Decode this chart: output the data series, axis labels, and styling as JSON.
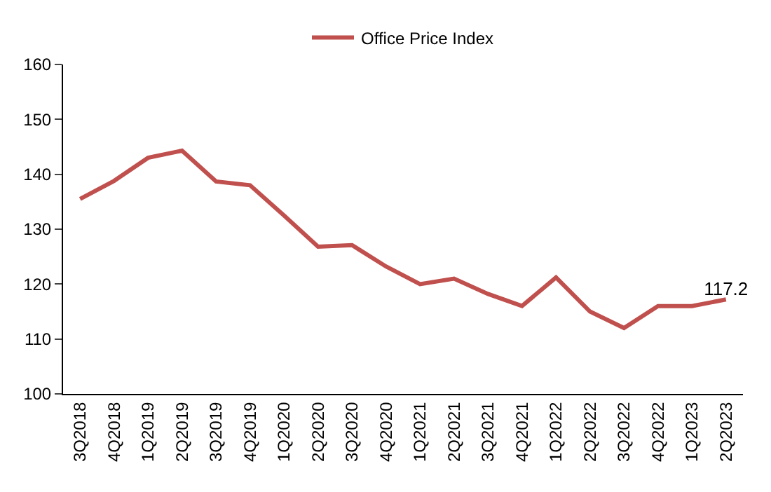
{
  "chart_data": {
    "type": "line",
    "categories": [
      "3Q2018",
      "4Q2018",
      "1Q2019",
      "2Q2019",
      "3Q2019",
      "4Q2019",
      "1Q2020",
      "2Q2020",
      "3Q2020",
      "4Q2020",
      "1Q2021",
      "2Q2021",
      "3Q2021",
      "4Q2021",
      "1Q2022",
      "2Q2022",
      "3Q2022",
      "4Q2022",
      "1Q2023",
      "2Q2023"
    ],
    "series": [
      {
        "name": "Office Price Index",
        "color": "#c0504d",
        "values": [
          135.5,
          138.8,
          143,
          144.3,
          138.7,
          138,
          132.5,
          126.8,
          127.1,
          123.2,
          120,
          121,
          118.2,
          116,
          121.2,
          115,
          112,
          116,
          116,
          117.2
        ],
        "value_labels": [
          null,
          null,
          null,
          null,
          null,
          null,
          null,
          null,
          null,
          null,
          null,
          null,
          null,
          null,
          null,
          null,
          null,
          null,
          null,
          "117.2"
        ]
      }
    ],
    "ylim": [
      100,
      160
    ],
    "yticks": [
      100,
      110,
      120,
      130,
      140,
      150,
      160
    ],
    "legend": "top",
    "marker": "none",
    "line_style": "solid"
  }
}
